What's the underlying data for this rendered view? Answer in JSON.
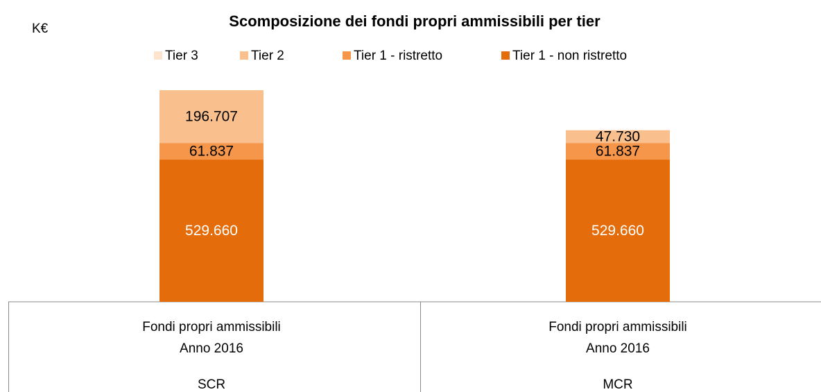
{
  "chart_data": {
    "type": "stacked_bar",
    "title": "Scomposizione dei fondi propri ammissibili per tier",
    "unit": "K€",
    "categories": [
      "SCR",
      "MCR"
    ],
    "category_groups": [
      [
        "Fondi propri ammissibili",
        "Anno 2016"
      ],
      [
        "Fondi propri ammissibili",
        "Anno 2016"
      ]
    ],
    "series": [
      {
        "name": "Tier 3",
        "color": "#fce4cf",
        "values": [
          null,
          null
        ]
      },
      {
        "name": "Tier 2",
        "color": "#f9c08e",
        "values": [
          196707,
          47730
        ],
        "value_labels": [
          "196.707",
          "47.730"
        ]
      },
      {
        "name": "Tier 1 - ristretto",
        "color": "#f5964b",
        "values": [
          61837,
          61837
        ],
        "value_labels": [
          "61.837",
          "61.837"
        ]
      },
      {
        "name": "Tier 1 - non ristretto",
        "color": "#e46c0a",
        "values": [
          529660,
          529660
        ],
        "value_labels": [
          "529.660",
          "529.660"
        ]
      }
    ],
    "legend": "top"
  }
}
